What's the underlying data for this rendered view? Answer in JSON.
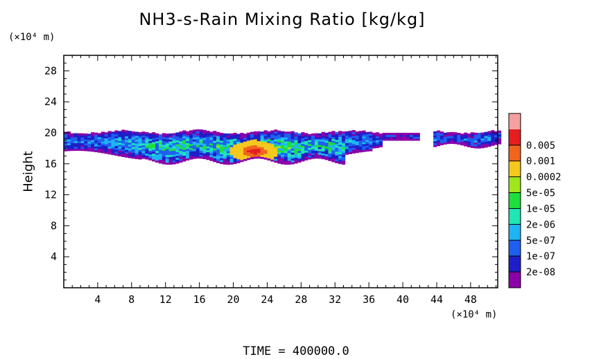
{
  "chart_data": {
    "type": "heatmap",
    "title": "NH3-s-Rain Mixing Ratio [kg/kg]",
    "ylabel": "Height",
    "xlabel": "",
    "x_unit": "(×10⁴ m)",
    "y_unit": "(×10⁴ m)",
    "xlim": [
      0,
      51.2
    ],
    "ylim": [
      0,
      30
    ],
    "xticks": [
      4,
      8,
      12,
      16,
      20,
      24,
      28,
      32,
      36,
      40,
      44,
      48
    ],
    "yticks": [
      4,
      8,
      12,
      16,
      20,
      24,
      28
    ],
    "colorbar": {
      "levels": [
        "2e-08",
        "1e-07",
        "5e-07",
        "2e-06",
        "1e-05",
        "5e-05",
        "0.0002",
        "0.001",
        "0.005"
      ],
      "colors": [
        "#8b00a8",
        "#1e1ec8",
        "#1e5ff0",
        "#1eb4f5",
        "#1ee6b4",
        "#1ede3c",
        "#a0e61e",
        "#f5c81e",
        "#f0641e",
        "#e61e1e",
        "#f5a0a0"
      ]
    },
    "layer": {
      "description_values": "mixing ratio layer between height ~16 and ~20",
      "bottom_height": 16.5,
      "top_height": 20,
      "peak_region_x": [
        20.5,
        24
      ],
      "peak_height": 17.5,
      "peak_level": "0.001"
    },
    "footer": "TIME  =  400000.0"
  }
}
